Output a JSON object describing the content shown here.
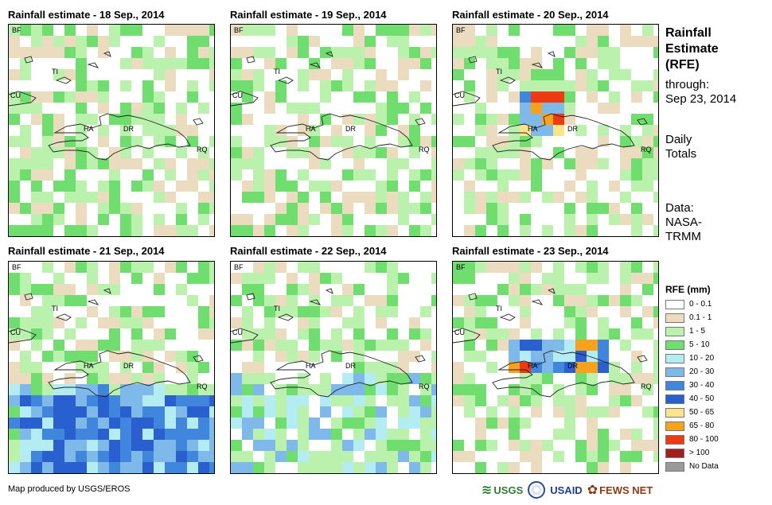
{
  "panels": [
    {
      "title": "Rainfall estimate - 18 Sep., 2014",
      "seed": 18
    },
    {
      "title": "Rainfall estimate - 19 Sep., 2014",
      "seed": 19
    },
    {
      "title": "Rainfall estimate - 20 Sep., 2014",
      "seed": 20
    },
    {
      "title": "Rainfall estimate - 21 Sep., 2014",
      "seed": 21
    },
    {
      "title": "Rainfall estimate - 22 Sep., 2014",
      "seed": 22
    },
    {
      "title": "Rainfall estimate - 23 Sep., 2014",
      "seed": 23
    }
  ],
  "map_labels": {
    "bf": "BF",
    "ti": "TI",
    "cu": "CU",
    "ha": "HA",
    "dr": "DR",
    "rq": "RQ"
  },
  "side": {
    "title_line1": "Rainfall",
    "title_line2": "Estimate",
    "title_line3": "(RFE)",
    "through": "through:",
    "date": "Sep 23, 2014",
    "daily1": "Daily",
    "daily2": "Totals",
    "data1": "Data:",
    "data2": "NASA-",
    "data3": "TRMM"
  },
  "legend": {
    "title": "RFE (mm)",
    "items": [
      {
        "label": "0 - 0.1",
        "color": "#ffffff"
      },
      {
        "label": "0.1 - 1",
        "color": "#ecdcbf"
      },
      {
        "label": "1 - 5",
        "color": "#b9f1ad"
      },
      {
        "label": "5 - 10",
        "color": "#6fde6f"
      },
      {
        "label": "10 - 20",
        "color": "#b3ecf2"
      },
      {
        "label": "20 - 30",
        "color": "#7eb9ea"
      },
      {
        "label": "30 - 40",
        "color": "#3f86dc"
      },
      {
        "label": "40 - 50",
        "color": "#2a5fd0"
      },
      {
        "label": "50 - 65",
        "color": "#fbe58a"
      },
      {
        "label": "65 - 80",
        "color": "#f7a21c"
      },
      {
        "label": "80 - 100",
        "color": "#ee3a12"
      },
      {
        "label": "> 100",
        "color": "#a51d1d"
      },
      {
        "label": "No Data",
        "color": "#9a9a9a"
      }
    ]
  },
  "footer": "Map produced by USGS/EROS",
  "logos": {
    "usgs": "USGS",
    "usaid": "USAID",
    "fewsnet": "FEWS NET"
  }
}
